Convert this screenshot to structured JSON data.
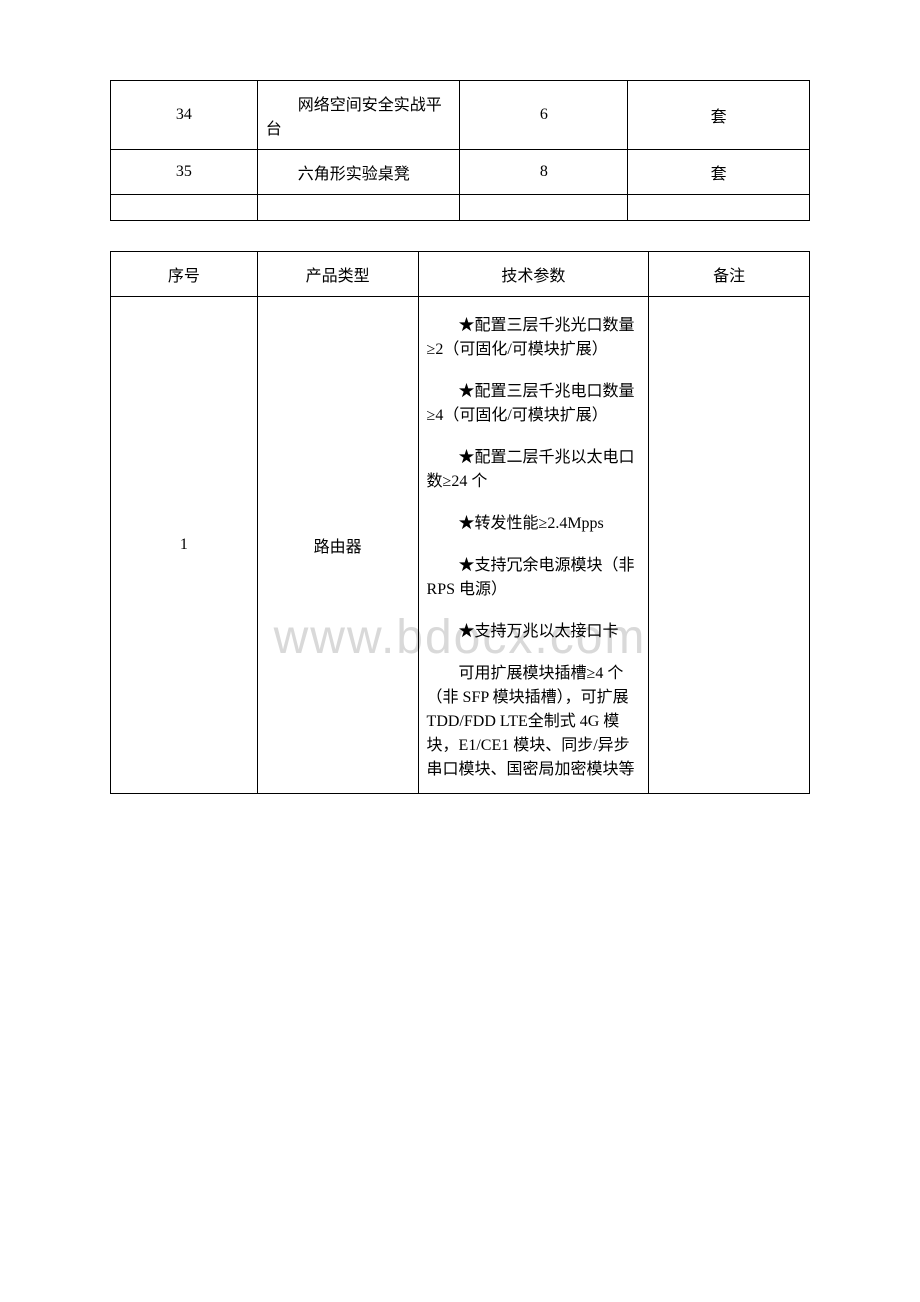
{
  "watermark": "www.bdocx.com",
  "table1": {
    "rows": [
      {
        "num": "34",
        "name": "网络空间安全实战平台",
        "qty": "6",
        "unit": "套"
      },
      {
        "num": "35",
        "name": "六角形实验桌凳",
        "qty": "8",
        "unit": "套"
      }
    ]
  },
  "table2": {
    "headers": {
      "c1": "序号",
      "c2": "产品类型",
      "c3": "技术参数",
      "c4": "备注"
    },
    "row": {
      "num": "1",
      "type": "路由器",
      "remark": "",
      "specs": [
        "★配置三层千兆光口数量≥2（可固化/可模块扩展）",
        "★配置三层千兆电口数量≥4（可固化/可模块扩展）",
        "★配置二层千兆以太电口数≥24 个",
        "★转发性能≥2.4Mpps",
        "★支持冗余电源模块（非RPS 电源）",
        "★支持万兆以太接口卡",
        "可用扩展模块插槽≥4 个（非 SFP 模块插槽），可扩展TDD/FDD LTE全制式 4G 模块，E1/CE1 模块、同步/异步串口模块、国密局加密模块等"
      ]
    }
  },
  "styles": {
    "page_bg": "#ffffff",
    "border_color": "#000000",
    "text_color": "#000000",
    "watermark_color": "#d9d9d9",
    "font_family": "SimSun",
    "base_fontsize": 16,
    "watermark_fontsize": 48
  }
}
